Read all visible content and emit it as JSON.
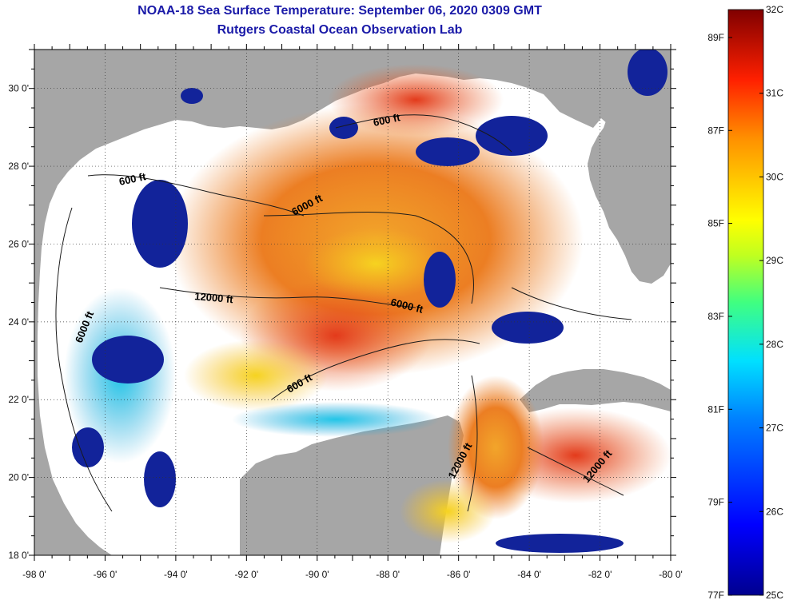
{
  "header": {
    "title": "NOAA-18 Sea Surface Temperature:  September 06, 2020 0309 GMT",
    "subtitle": "Rutgers Coastal Ocean Observation Lab"
  },
  "axes": {
    "lat_labels": [
      "30 0'",
      "28 0'",
      "26 0'",
      "24 0'",
      "22 0'",
      "20 0'",
      "18 0'"
    ],
    "lon_labels": [
      "-98 0'",
      "-96 0'",
      "-94 0'",
      "-92 0'",
      "-90 0'",
      "-88 0'",
      "-86 0'",
      "-84 0'",
      "-82 0'",
      "-80 0'"
    ],
    "lat_range": [
      18,
      31
    ],
    "lon_range": [
      -98,
      -80
    ]
  },
  "contours": [
    {
      "text": "600 ft"
    },
    {
      "text": "600 ft"
    },
    {
      "text": "6000 ft"
    },
    {
      "text": "12000 ft"
    },
    {
      "text": "6000 ft"
    },
    {
      "text": "6000 ft"
    },
    {
      "text": "600 ft"
    },
    {
      "text": "12000 ft"
    },
    {
      "text": "12000 ft"
    }
  ],
  "colorbar": {
    "celsius_labels": [
      "32C",
      "31C",
      "30C",
      "29C",
      "28C",
      "27C",
      "26C",
      "25C"
    ],
    "fahrenheit_labels": [
      "89F",
      "87F",
      "85F",
      "83F",
      "81F",
      "79F",
      "77F"
    ],
    "range_c": [
      25,
      32
    ]
  },
  "colors": {
    "title": "#1a1aa8",
    "land": "#a6a6a6",
    "cloud": "#ffffff",
    "warm": "#e0451b",
    "mid": "#f3b31e",
    "cool": "#10238f"
  }
}
